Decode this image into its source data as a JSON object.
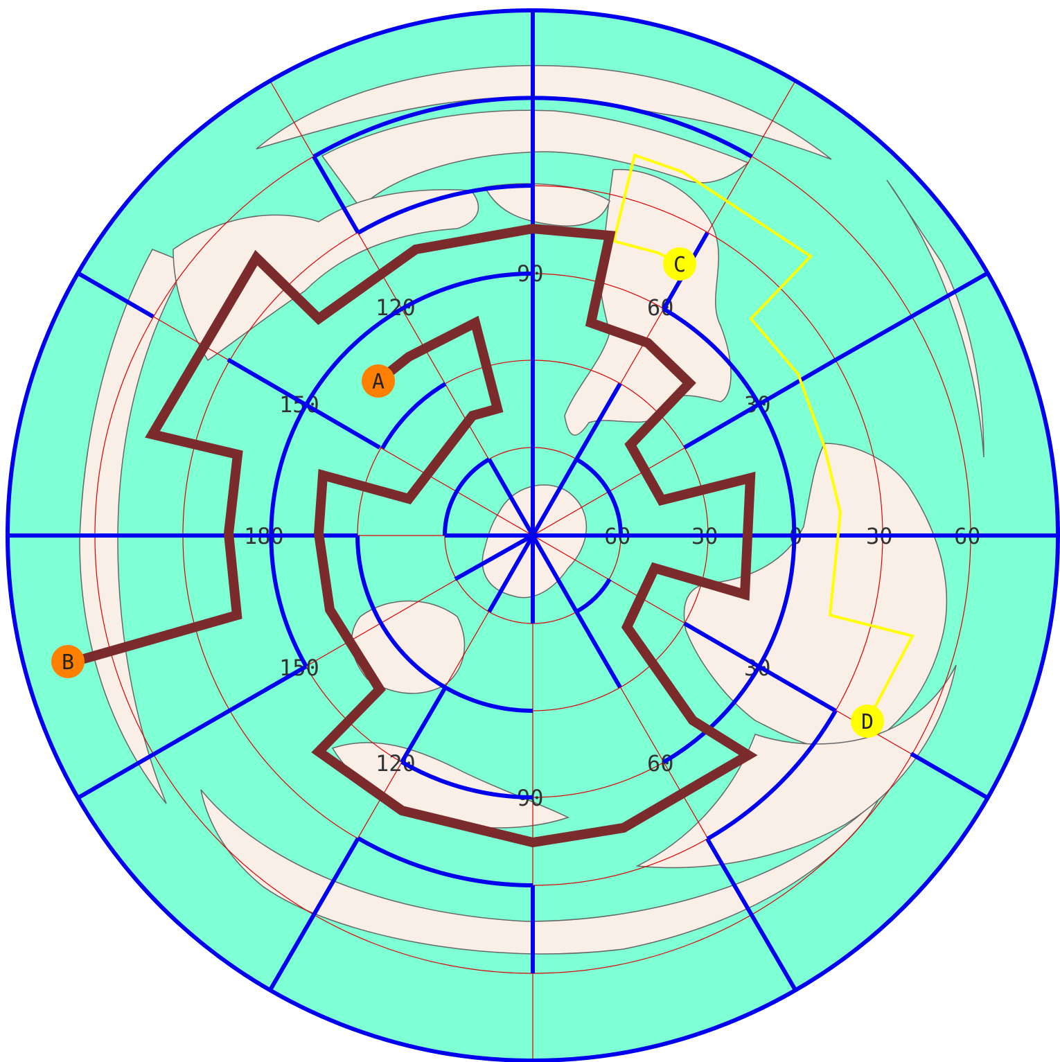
{
  "colors": {
    "ocean": "#7fffd4",
    "land": "#faefe6",
    "coast": "#666666",
    "grid": "#dd0000",
    "walls": "#0000ee",
    "solution_path": "#7b2b2b",
    "guide_path": "#ffff00",
    "marker_start_end": "#ff7f00",
    "marker_guide": "#ffff00"
  },
  "grid_labels": {
    "top_90": "90",
    "label_120_upper": "120",
    "label_60_upper": "60",
    "label_150_upper": "150",
    "label_30_upper": "30",
    "label_180": "180",
    "label_60_center": "60",
    "label_30_center": "30",
    "label_0": "0",
    "label_30_right": "30",
    "label_60_right": "60",
    "label_150_lower": "150",
    "label_30_lower": "30",
    "label_120_lower": "120",
    "label_60_lower": "60",
    "bottom_90": "90"
  },
  "markers": {
    "a": "A",
    "b": "B",
    "c": "C",
    "d": "D"
  },
  "maze": {
    "projection": "azimuthal, south pole centered",
    "ring_count": 5,
    "sector_spokes": true
  }
}
